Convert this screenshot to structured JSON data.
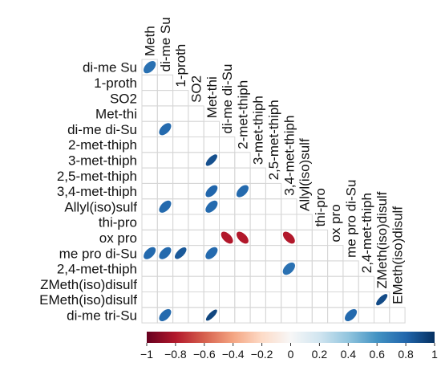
{
  "chart_data": {
    "type": "heatmap",
    "subtype": "lower-triangle correlation matrix (ellipse glyphs)",
    "variables": [
      "Meth",
      "di-me Su",
      "1-proth",
      "SO2",
      "Met-thi",
      "di-me di-Su",
      "2-met-thiph",
      "3-met-thiph",
      "2,5-met-thiph",
      "3,4-met-thiph",
      "Allyl(iso)sulf",
      "thi-pro",
      "ox pro",
      "me pro di-Su",
      "2,4-met-thiph",
      "ZMeth(iso)disulf",
      "EMeth(iso)disulf",
      "di-me tri-Su"
    ],
    "row_labels": [
      "di-me Su",
      "1-proth",
      "SO2",
      "Met-thi",
      "di-me di-Su",
      "2-met-thiph",
      "3-met-thiph",
      "2,5-met-thiph",
      "3,4-met-thiph",
      "Allyl(iso)sulf",
      "thi-pro",
      "ox pro",
      "me pro di-Su",
      "2,4-met-thiph",
      "ZMeth(iso)disulf",
      "EMeth(iso)disulf",
      "di-me tri-Su"
    ],
    "column_labels": [
      "Meth",
      "di-me Su",
      "1-proth",
      "SO2",
      "Met-thi",
      "di-me di-Su",
      "2-met-thiph",
      "3-met-thiph",
      "2,5-met-thiph",
      "3,4-met-thiph",
      "Allyl(iso)sulf",
      "thi-pro",
      "ox pro",
      "me pro di-Su",
      "2,4-met-thiph",
      "ZMeth(iso)disulf",
      "EMeth(iso)disulf"
    ],
    "cells": [
      {
        "row": "di-me Su",
        "col": "Meth",
        "value": 0.75
      },
      {
        "row": "di-me di-Su",
        "col": "di-me Su",
        "value": 0.78
      },
      {
        "row": "3-met-thiph",
        "col": "Met-thi",
        "value": 0.88
      },
      {
        "row": "3,4-met-thiph",
        "col": "Met-thi",
        "value": 0.8
      },
      {
        "row": "3,4-met-thiph",
        "col": "2-met-thiph",
        "value": 0.78
      },
      {
        "row": "Allyl(iso)sulf",
        "col": "di-me Su",
        "value": 0.78
      },
      {
        "row": "Allyl(iso)sulf",
        "col": "Met-thi",
        "value": 0.78
      },
      {
        "row": "ox pro",
        "col": "di-me di-Su",
        "value": -0.8
      },
      {
        "row": "ox pro",
        "col": "2-met-thiph",
        "value": -0.8
      },
      {
        "row": "ox pro",
        "col": "3,4-met-thiph",
        "value": -0.8
      },
      {
        "row": "me pro di-Su",
        "col": "Meth",
        "value": 0.78
      },
      {
        "row": "me pro di-Su",
        "col": "di-me Su",
        "value": 0.78
      },
      {
        "row": "me pro di-Su",
        "col": "1-proth",
        "value": 0.85
      },
      {
        "row": "me pro di-Su",
        "col": "Met-thi",
        "value": 0.78
      },
      {
        "row": "2,4-met-thiph",
        "col": "3,4-met-thiph",
        "value": 0.75
      },
      {
        "row": "EMeth(iso)disulf",
        "col": "ZMeth(iso)disulf",
        "value": 0.9
      },
      {
        "row": "di-me tri-Su",
        "col": "di-me Su",
        "value": 0.78
      },
      {
        "row": "di-me tri-Su",
        "col": "Met-thi",
        "value": 0.92
      },
      {
        "row": "di-me tri-Su",
        "col": "me pro di-Su",
        "value": 0.78
      }
    ],
    "colorbar": {
      "range": [
        -1,
        1
      ],
      "ticks": [
        "−1",
        "−0.8",
        "−0.6",
        "−0.4",
        "−0.2",
        "0",
        "0.2",
        "0.4",
        "0.6",
        "0.8",
        "1"
      ],
      "colors": [
        "#67001f",
        "#b2182b",
        "#d6604d",
        "#f4a582",
        "#fddbc7",
        "#f7f7f7",
        "#d1e5f0",
        "#92c5de",
        "#4393c3",
        "#2166ac",
        "#053061"
      ]
    },
    "grid": true,
    "title": "",
    "xlabel": "",
    "ylabel": ""
  }
}
